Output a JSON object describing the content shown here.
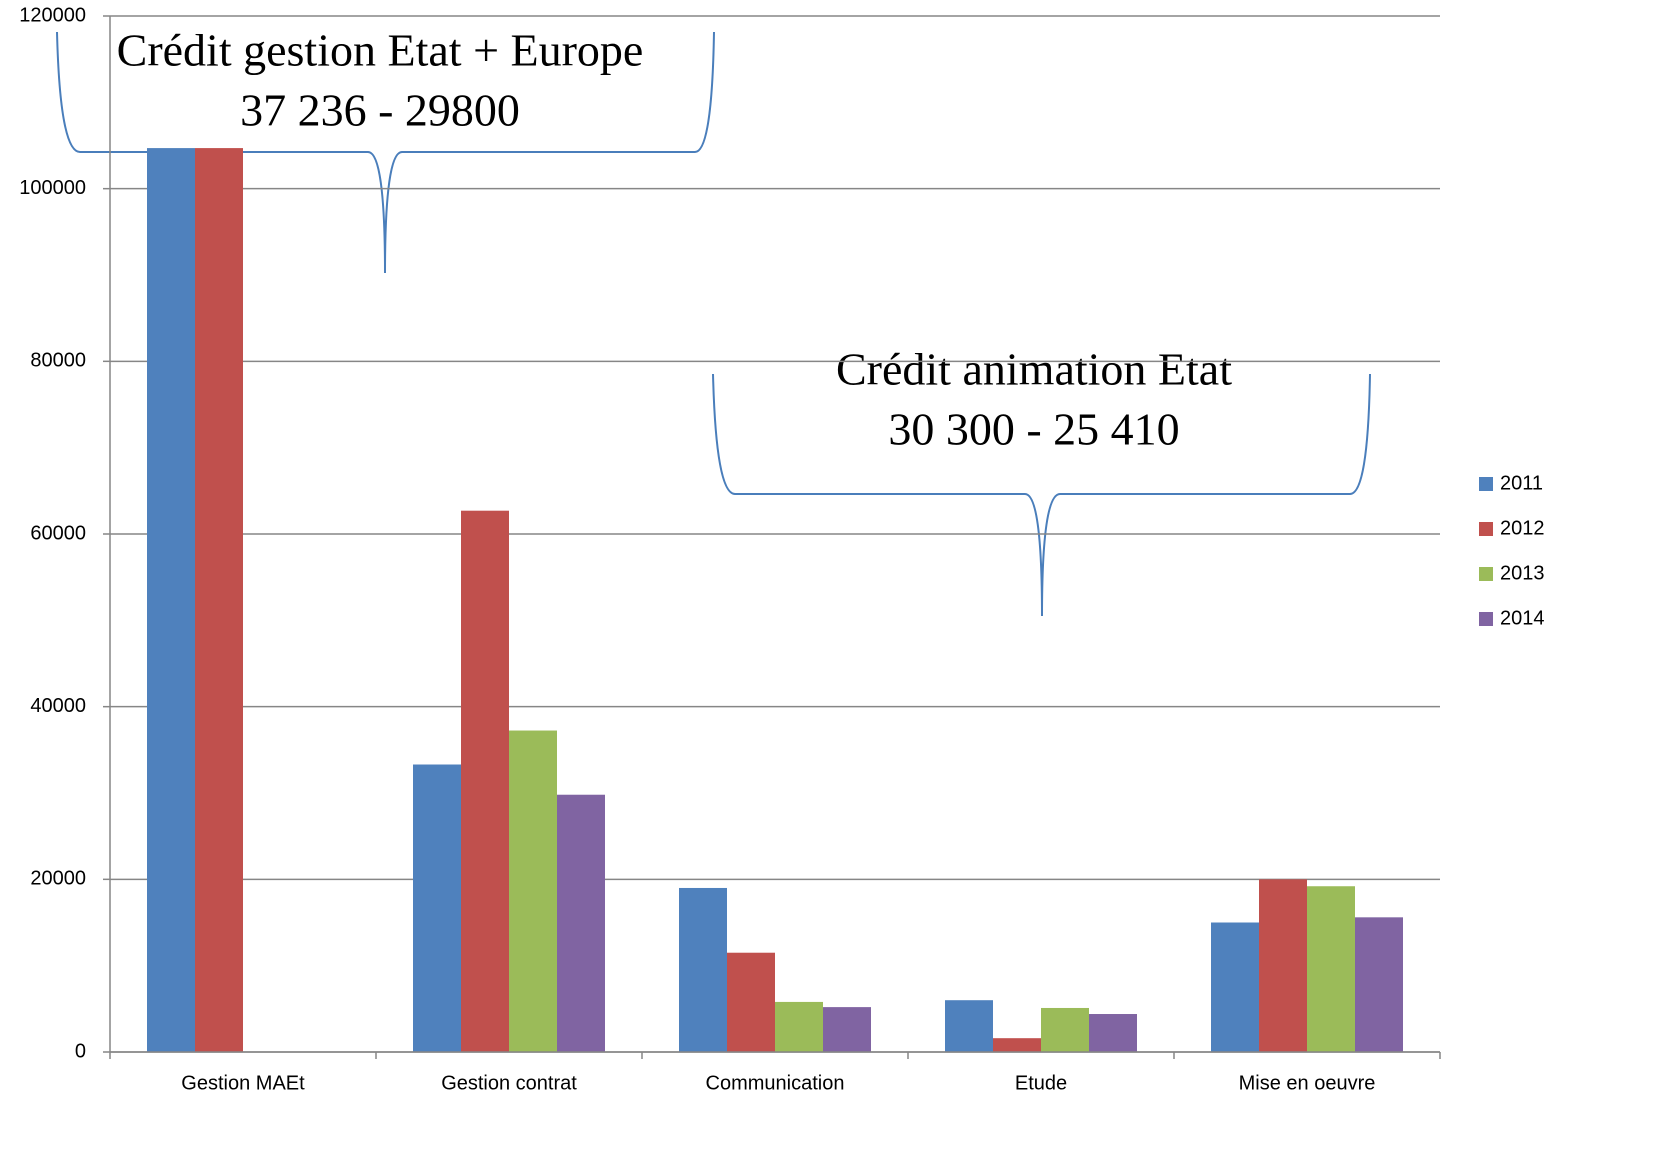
{
  "chart_data": {
    "type": "bar",
    "categories": [
      "Gestion MAEt",
      "Gestion contrat",
      "Communication",
      "Etude",
      "Mise en oeuvre"
    ],
    "series": [
      {
        "name": "2011",
        "color": "#4f81bd",
        "values": [
          104700,
          33300,
          19000,
          6000,
          15000
        ]
      },
      {
        "name": "2012",
        "color": "#c0504d",
        "values": [
          104700,
          62700,
          11500,
          1600,
          20000
        ]
      },
      {
        "name": "2013",
        "color": "#9bbb59",
        "values": [
          null,
          37236,
          5800,
          5100,
          19200
        ]
      },
      {
        "name": "2014",
        "color": "#8064a2",
        "values": [
          null,
          29800,
          5200,
          4400,
          15600
        ]
      }
    ],
    "ylim": [
      0,
      120000
    ],
    "yticks": [
      0,
      20000,
      40000,
      60000,
      80000,
      100000,
      120000
    ],
    "grid": true,
    "legend": "right",
    "annotations": [
      {
        "lines": [
          "Crédit gestion Etat + Europe",
          "37 236 - 29800"
        ]
      },
      {
        "lines": [
          "Crédit animation Etat",
          "30 300 - 25 410"
        ]
      }
    ]
  }
}
